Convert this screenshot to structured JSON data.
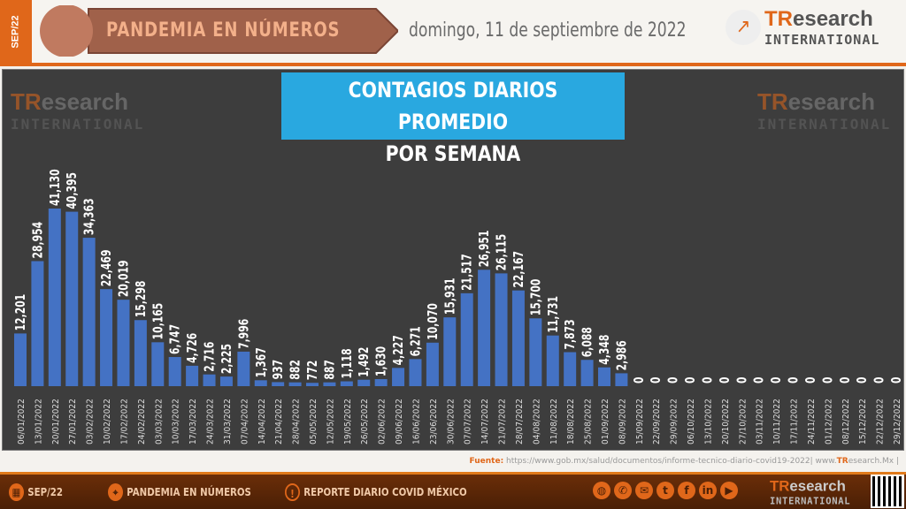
{
  "header": {
    "side_tab": "SEP/22",
    "banner": "PANDEMIA EN NÚMEROS",
    "date": "domingo, 11 de septiembre de 2022",
    "logo_tr": "TR",
    "logo_rest": "esearch",
    "logo_intl": "INTERNATIONAL"
  },
  "chart_data": {
    "type": "bar",
    "title_line1": "CONTAGIOS DIARIOS PROMEDIO",
    "title_line2": "POR SEMANA",
    "categories": [
      "06/01/2022",
      "13/01/2022",
      "20/01/2022",
      "27/01/2022",
      "03/02/2022",
      "10/02/2022",
      "17/02/2022",
      "24/02/2022",
      "03/03/2022",
      "10/03/2022",
      "17/03/2022",
      "24/03/2022",
      "31/03/2022",
      "07/04/2022",
      "14/04/2022",
      "21/04/2022",
      "28/04/2022",
      "05/05/2022",
      "12/05/2022",
      "19/05/2022",
      "26/05/2022",
      "02/06/2022",
      "09/06/2022",
      "16/06/2022",
      "23/06/2022",
      "30/06/2022",
      "07/07/2022",
      "14/07/2022",
      "21/07/2022",
      "28/07/2022",
      "04/08/2022",
      "11/08/2022",
      "18/08/2022",
      "25/08/2022",
      "01/09/2022",
      "08/09/2022",
      "15/09/2022",
      "22/09/2022",
      "29/09/2022",
      "06/10/2022",
      "13/10/2022",
      "20/10/2022",
      "27/10/2022",
      "03/11/2022",
      "10/11/2022",
      "17/11/2022",
      "24/11/2022",
      "01/12/2022",
      "08/12/2022",
      "15/12/2022",
      "22/12/2022",
      "29/12/2022"
    ],
    "values": [
      12201,
      28954,
      41130,
      40395,
      34363,
      22469,
      20019,
      15298,
      10165,
      6747,
      4726,
      2716,
      2225,
      7996,
      1367,
      937,
      882,
      772,
      887,
      1118,
      1492,
      1630,
      4227,
      6271,
      10070,
      15931,
      21517,
      26951,
      26115,
      22167,
      15700,
      11731,
      7873,
      6088,
      4348,
      2986,
      0,
      0,
      0,
      0,
      0,
      0,
      0,
      0,
      0,
      0,
      0,
      0,
      0,
      0,
      0,
      0
    ],
    "ylim": [
      0,
      45000
    ],
    "bar_color": "#4472c4",
    "background": "#3d3d3d",
    "grid": false
  },
  "source": {
    "label": "Fuente:",
    "text": " https://www.gob.mx/salud/documentos/informe-tecnico-diario-covid19-2022| www.",
    "tr": "TR",
    "rest": "esearch.Mx |"
  },
  "footer": {
    "date": "SEP/22",
    "section": "PANDEMIA EN NÚMEROS",
    "report": "REPORTE DIARIO COVID MÉXICO"
  },
  "colors": {
    "accent": "#e0671a",
    "title_bg": "#29a8e0"
  }
}
